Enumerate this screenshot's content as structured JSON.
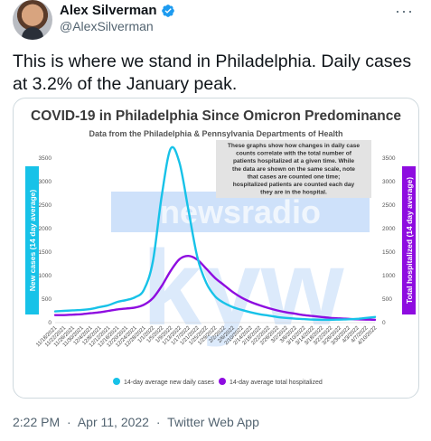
{
  "tweet": {
    "author_name": "Alex Silverman",
    "handle": "@AlexSilverman",
    "text": "This is where we stand in Philadelphia. Daily cases at 3.2% of the January peak.",
    "time": "2:22 PM",
    "date": "Apr 11, 2022",
    "source": "Twitter Web App",
    "separator": "·"
  },
  "colors": {
    "cases": "#17c2e8",
    "hospitalized": "#8e0ce0",
    "title": "#3a3a3a",
    "watermark": "#9ec4f5"
  },
  "watermark": {
    "line1": "newsradio",
    "line2": "kyw"
  },
  "chart_data": {
    "type": "line",
    "title": "COVID-19 in Philadelphia Since Omicron Predominance",
    "subtitle": "Data from the Philadelphia & Pennsylvania Departments of Health",
    "annotation": "These graphs show how changes in daily case counts correlate with the total number of patients hospitalized at a given time. While the data are shown on the same scale, note that cases are counted one time; hospitalized patients are counted each day they are in the hospital.",
    "ylabel_left": "New cases (14 day average)",
    "ylabel_right": "Total hospitalized (14 day average)",
    "ylim": [
      0,
      3500
    ],
    "yticks": [
      0,
      500,
      1000,
      1500,
      2000,
      2500,
      3000,
      3500
    ],
    "x_ticks": [
      "11/18/2021",
      "11/22/2021",
      "11/26/2021",
      "11/30/2021",
      "12/4/2021",
      "12/8/2021",
      "12/12/2021",
      "12/16/2021",
      "12/20/2021",
      "12/24/2021",
      "12/28/2021",
      "1/1/2022",
      "1/5/2022",
      "1/9/2022",
      "1/13/2022",
      "1/17/2022",
      "1/21/2022",
      "1/25/2022",
      "1/29/2022",
      "2/2/2022",
      "2/6/2022",
      "2/10/2022",
      "2/14/2022",
      "2/18/2022",
      "2/22/2022",
      "2/26/2022",
      "3/2/2022",
      "3/6/2022",
      "3/10/2022",
      "3/14/2022",
      "3/18/2022",
      "3/22/2022",
      "3/26/2022",
      "3/30/2022",
      "4/3/2022",
      "4/7/2022",
      "4/10/2022"
    ],
    "series": [
      {
        "name": "14-day average new daily cases",
        "values": [
          240,
          250,
          260,
          270,
          290,
          330,
          370,
          440,
          480,
          540,
          700,
          1300,
          2700,
          3700,
          3400,
          2400,
          1400,
          850,
          560,
          420,
          330,
          270,
          220,
          180,
          150,
          120,
          100,
          85,
          75,
          65,
          60,
          60,
          65,
          70,
          80,
          100,
          120
        ]
      },
      {
        "name": "14-day average total hospitalized",
        "values": [
          160,
          160,
          170,
          180,
          200,
          220,
          250,
          280,
          300,
          320,
          380,
          520,
          780,
          1100,
          1350,
          1420,
          1340,
          1150,
          950,
          800,
          650,
          530,
          440,
          370,
          310,
          260,
          220,
          190,
          160,
          140,
          120,
          100,
          90,
          80,
          70,
          65,
          60
        ]
      }
    ],
    "legend_position": "bottom"
  }
}
